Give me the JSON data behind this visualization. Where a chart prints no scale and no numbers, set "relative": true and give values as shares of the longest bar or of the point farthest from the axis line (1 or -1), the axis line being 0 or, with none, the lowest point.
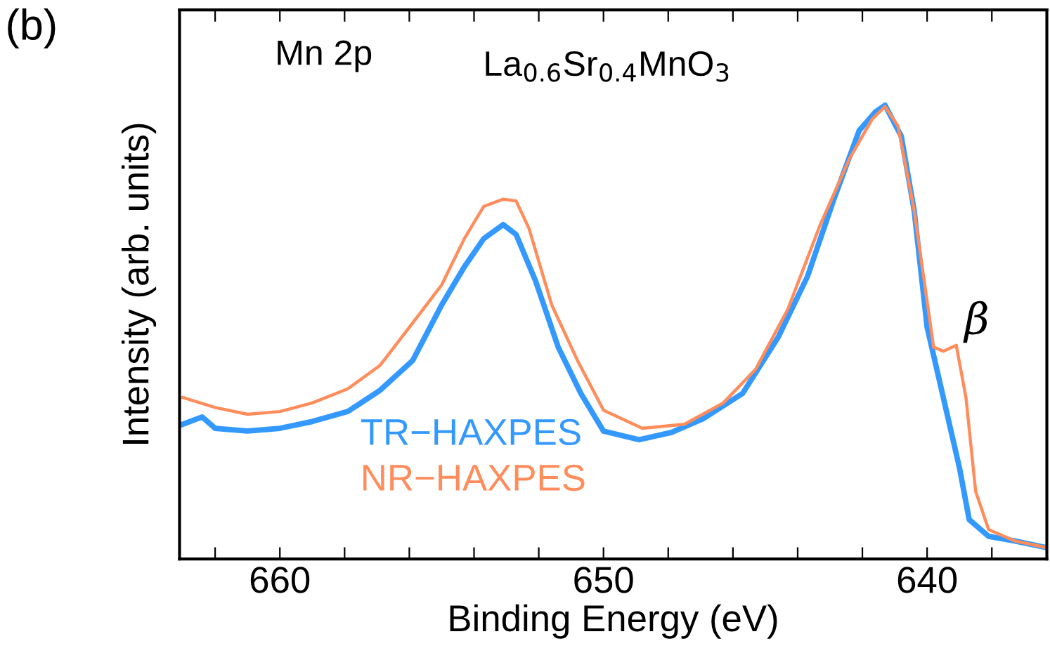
{
  "chart_data": {
    "type": "line",
    "xlabel": "Binding Energy (eV)",
    "ylabel": "Intensity (arb. units)",
    "relative": true,
    "xlim": [
      663.1,
      636.3
    ],
    "xticks": [
      {
        "value": 662,
        "label": null
      },
      660,
      {
        "value": 658,
        "label": null
      },
      {
        "value": 656,
        "label": null
      },
      {
        "value": 654,
        "label": null
      },
      {
        "value": 652,
        "label": null
      },
      650,
      {
        "value": 648,
        "label": null
      },
      {
        "value": 646,
        "label": null
      },
      {
        "value": 644,
        "label": null
      },
      {
        "value": 642,
        "label": null
      },
      640,
      {
        "value": 638,
        "label": null
      }
    ],
    "legend": "bottom left",
    "grid": false,
    "line_style": "solid",
    "marker": "none",
    "annotations": [
      "(b)",
      "Mn 2p",
      "La$_{0.6}$Sr$_{0.4}$MnO$_{3}$",
      "β"
    ],
    "series": [
      {
        "name": "TR−HAXPES",
        "color": "#3399ff",
        "x": [
          663.0,
          662.4,
          662.0,
          661.0,
          660.0,
          659.0,
          657.9,
          656.9,
          655.9,
          655.0,
          654.3,
          653.7,
          653.1,
          652.7,
          652.1,
          651.4,
          650.7,
          650.0,
          648.9,
          647.9,
          646.9,
          645.7,
          644.6,
          643.7,
          642.9,
          642.1,
          641.6,
          641.3,
          640.8,
          640.4,
          640.0,
          639.4,
          639.0,
          638.7,
          638.1,
          637.3,
          636.3
        ],
        "values": [
          0.297,
          0.313,
          0.288,
          0.282,
          0.288,
          0.303,
          0.325,
          0.372,
          0.437,
          0.56,
          0.644,
          0.706,
          0.737,
          0.715,
          0.613,
          0.467,
          0.365,
          0.282,
          0.263,
          0.279,
          0.31,
          0.365,
          0.489,
          0.622,
          0.789,
          0.944,
          0.985,
          1.0,
          0.932,
          0.768,
          0.511,
          0.325,
          0.201,
          0.087,
          0.05,
          0.04,
          0.025
        ]
      },
      {
        "name": "NR−HAXPES",
        "color": "#ff8c5a",
        "x": [
          663.0,
          662.0,
          661.0,
          660.0,
          659.0,
          657.9,
          656.9,
          655.9,
          655.0,
          654.3,
          653.7,
          653.1,
          652.7,
          652.3,
          651.6,
          650.8,
          650.0,
          648.8,
          647.5,
          646.3,
          645.3,
          644.3,
          643.3,
          642.4,
          641.7,
          641.3,
          640.9,
          640.4,
          639.8,
          639.5,
          639.1,
          638.8,
          638.5,
          638.1,
          637.3,
          636.3
        ],
        "values": [
          0.356,
          0.334,
          0.319,
          0.325,
          0.344,
          0.375,
          0.427,
          0.52,
          0.604,
          0.706,
          0.777,
          0.793,
          0.789,
          0.728,
          0.56,
          0.437,
          0.328,
          0.288,
          0.297,
          0.344,
          0.418,
          0.551,
          0.737,
          0.882,
          0.969,
          0.997,
          0.954,
          0.768,
          0.467,
          0.458,
          0.471,
          0.356,
          0.149,
          0.065,
          0.04,
          0.025
        ]
      }
    ]
  }
}
